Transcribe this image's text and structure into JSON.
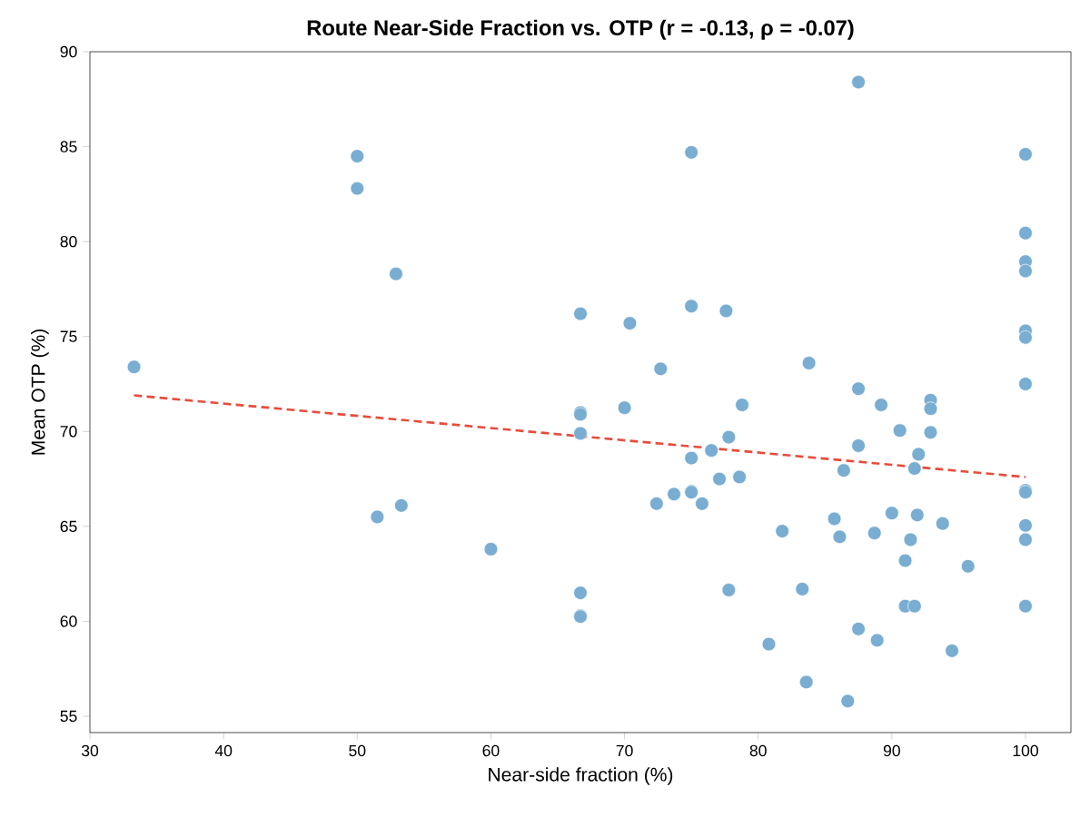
{
  "chart_data": {
    "type": "scatter",
    "title": "Route Near-Side Fraction vs. OTP  (r = -0.13, ρ = -0.07)",
    "xlabel": "Near-side fraction (%)",
    "ylabel": "Mean OTP (%)",
    "xlim": [
      30,
      103.4
    ],
    "ylim": [
      54.14,
      90
    ],
    "xticks": [
      30,
      40,
      50,
      60,
      70,
      80,
      90,
      100
    ],
    "yticks": [
      55,
      60,
      65,
      70,
      75,
      80,
      85,
      90
    ],
    "series": [
      {
        "marker": "circle",
        "color": "#79add2",
        "x": [
          33.3,
          50,
          50,
          52.9,
          51.5,
          53.3,
          60,
          66.7,
          66.7,
          66.7,
          66.7,
          66.7,
          66.7,
          66.7,
          70,
          70.4,
          72.7,
          72.4,
          73.7,
          75,
          75,
          75,
          75,
          75,
          75.8,
          76.5,
          77.1,
          77.6,
          77.8,
          77.8,
          78.6,
          78.8,
          80.8,
          81.8,
          83.3,
          83.6,
          83.8,
          85.7,
          86.1,
          86.4,
          86.7,
          87.5,
          87.5,
          87.5,
          87.5,
          88.7,
          88.9,
          89.2,
          90,
          90.6,
          91,
          91,
          91.4,
          91.7,
          91.7,
          92,
          91.9,
          92.9,
          92.9,
          92.9,
          93.8,
          94.5,
          95.7,
          100,
          100,
          100,
          100,
          100,
          100,
          100,
          100,
          100,
          100,
          100,
          100
        ],
        "values": [
          73.4,
          84.5,
          82.8,
          78.3,
          65.5,
          66.1,
          63.8,
          76.2,
          71.0,
          70.9,
          69.9,
          61.5,
          60.3,
          60.25,
          71.25,
          75.7,
          73.3,
          66.2,
          66.7,
          84.7,
          76.6,
          68.6,
          66.85,
          66.8,
          66.2,
          69.0,
          67.5,
          76.35,
          69.7,
          61.65,
          67.6,
          71.4,
          58.8,
          64.75,
          61.7,
          56.8,
          73.6,
          65.4,
          64.45,
          67.95,
          55.8,
          88.4,
          72.25,
          69.25,
          59.6,
          64.65,
          59.0,
          71.4,
          65.7,
          70.05,
          63.2,
          60.8,
          64.3,
          68.05,
          60.8,
          68.8,
          65.6,
          71.65,
          71.2,
          69.95,
          65.15,
          58.45,
          62.9,
          84.6,
          80.45,
          78.95,
          78.45,
          75.3,
          74.95,
          72.5,
          66.9,
          66.8,
          65.05,
          64.3,
          60.8
        ]
      },
      {
        "type": "line",
        "marker": "none",
        "line_style": "dashed",
        "color": "#e74c3c",
        "x": [
          33.3,
          100
        ],
        "values": [
          71.9,
          67.6
        ]
      }
    ]
  }
}
